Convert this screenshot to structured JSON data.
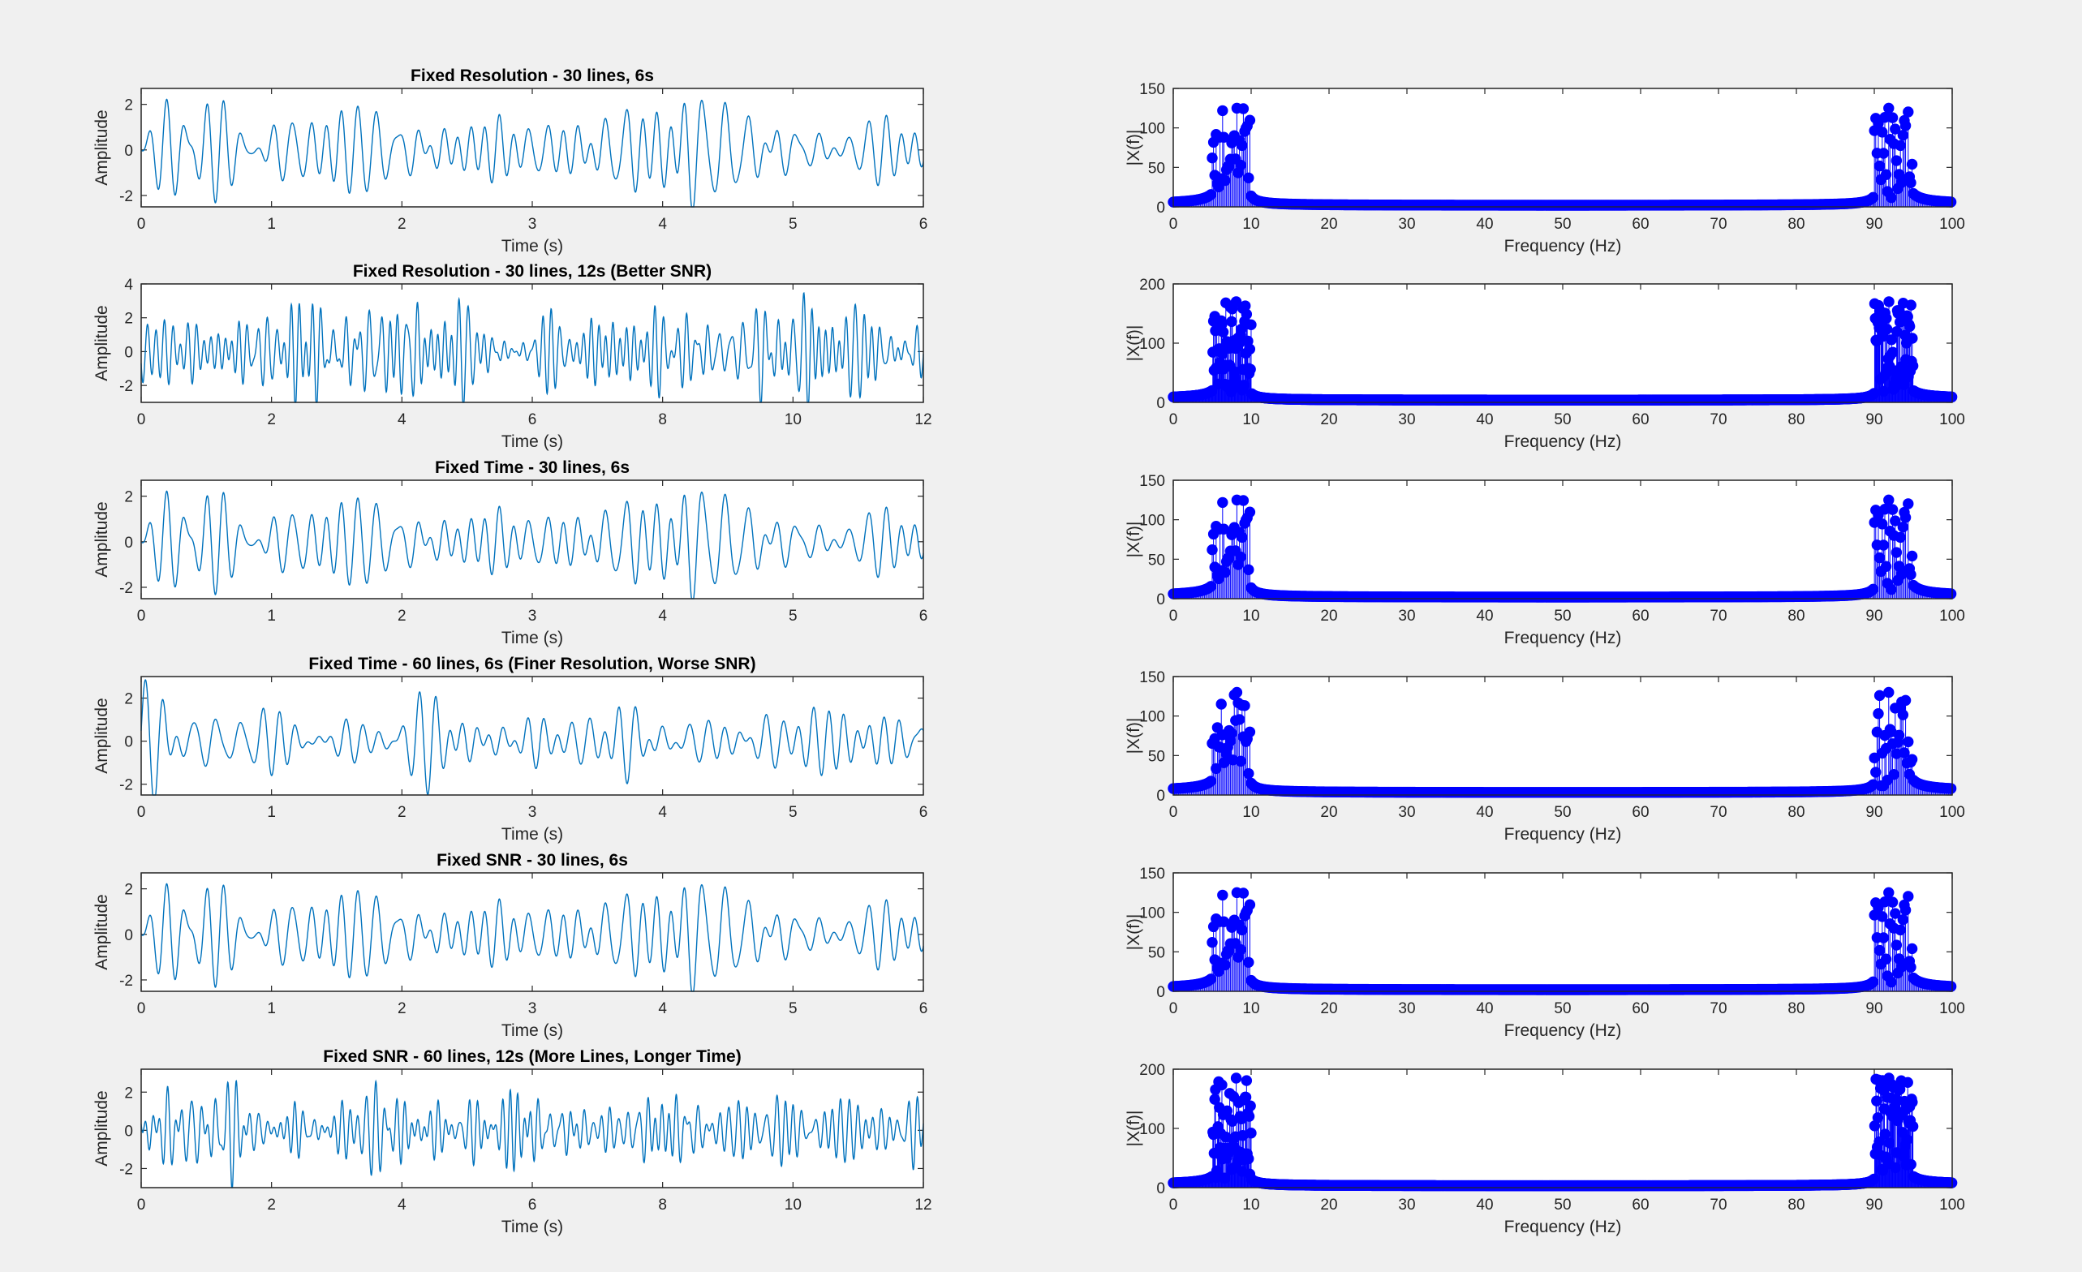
{
  "figure": {
    "background": "#f0f0f0"
  },
  "colors": {
    "time_line": "#0072bd",
    "stem": "#0000ff",
    "axis": "#262626"
  },
  "chart_data": [
    {
      "type": "line",
      "title": "Fixed Resolution - 30 lines, 6s",
      "xlabel": "Time (s)",
      "ylabel": "Amplitude",
      "xlim": [
        0,
        6
      ],
      "ylim": [
        -2.5,
        2.7
      ],
      "xticks": [
        0,
        1,
        2,
        3,
        4,
        5,
        6
      ],
      "yticks": [
        -2,
        0,
        2
      ],
      "signal": {
        "duration_s": 6,
        "num_lines": 30,
        "f_min_hz": 5,
        "f_max_hz": 10,
        "peak": 2.7,
        "seed": 11
      }
    },
    {
      "type": "stem",
      "xlabel": "Frequency (Hz)",
      "ylabel": "|X(f)|",
      "xlim": [
        0,
        100
      ],
      "ylim": [
        0,
        150
      ],
      "xticks": [
        0,
        10,
        20,
        30,
        40,
        50,
        60,
        70,
        80,
        90,
        100
      ],
      "yticks": [
        0,
        50,
        100,
        150
      ],
      "spectrum": {
        "bin_spacing_hz": 0.1667,
        "band_hz": [
          5,
          10
        ],
        "peak": 125,
        "floor": 3,
        "seed": 11
      }
    },
    {
      "type": "line",
      "title": "Fixed Resolution - 30 lines, 12s (Better SNR)",
      "xlabel": "Time (s)",
      "ylabel": "Amplitude",
      "xlim": [
        0,
        12
      ],
      "ylim": [
        -3,
        4
      ],
      "xticks": [
        0,
        2,
        4,
        6,
        8,
        10,
        12
      ],
      "yticks": [
        -2,
        0,
        2,
        4
      ],
      "signal": {
        "duration_s": 12,
        "num_lines": 30,
        "f_min_hz": 5,
        "f_max_hz": 10,
        "peak": 3.5,
        "seed": 23
      }
    },
    {
      "type": "stem",
      "xlabel": "Frequency (Hz)",
      "ylabel": "|X(f)|",
      "xlim": [
        0,
        100
      ],
      "ylim": [
        0,
        200
      ],
      "xticks": [
        0,
        10,
        20,
        30,
        40,
        50,
        60,
        70,
        80,
        90,
        100
      ],
      "yticks": [
        0,
        100,
        200
      ],
      "spectrum": {
        "bin_spacing_hz": 0.0833,
        "band_hz": [
          5,
          10
        ],
        "peak": 170,
        "floor": 6,
        "seed": 23
      }
    },
    {
      "type": "line",
      "title": "Fixed Time - 30 lines, 6s",
      "xlabel": "Time (s)",
      "ylabel": "Amplitude",
      "xlim": [
        0,
        6
      ],
      "ylim": [
        -2.5,
        2.7
      ],
      "xticks": [
        0,
        1,
        2,
        3,
        4,
        5,
        6
      ],
      "yticks": [
        -2,
        0,
        2
      ],
      "signal": {
        "duration_s": 6,
        "num_lines": 30,
        "f_min_hz": 5,
        "f_max_hz": 10,
        "peak": 2.7,
        "seed": 11
      }
    },
    {
      "type": "stem",
      "xlabel": "Frequency (Hz)",
      "ylabel": "|X(f)|",
      "xlim": [
        0,
        100
      ],
      "ylim": [
        0,
        150
      ],
      "xticks": [
        0,
        10,
        20,
        30,
        40,
        50,
        60,
        70,
        80,
        90,
        100
      ],
      "yticks": [
        0,
        50,
        100,
        150
      ],
      "spectrum": {
        "bin_spacing_hz": 0.1667,
        "band_hz": [
          5,
          10
        ],
        "peak": 125,
        "floor": 3,
        "seed": 11
      }
    },
    {
      "type": "line",
      "title": "Fixed Time - 60 lines, 6s (Finer Resolution, Worse SNR)",
      "xlabel": "Time (s)",
      "ylabel": "Amplitude",
      "xlim": [
        0,
        6
      ],
      "ylim": [
        -2.5,
        3
      ],
      "xticks": [
        0,
        1,
        2,
        3,
        4,
        5,
        6
      ],
      "yticks": [
        -2,
        0,
        2
      ],
      "signal": {
        "duration_s": 6,
        "num_lines": 60,
        "f_min_hz": 5,
        "f_max_hz": 10,
        "peak": 2.9,
        "seed": 37
      }
    },
    {
      "type": "stem",
      "xlabel": "Frequency (Hz)",
      "ylabel": "|X(f)|",
      "xlim": [
        0,
        100
      ],
      "ylim": [
        0,
        150
      ],
      "xticks": [
        0,
        10,
        20,
        30,
        40,
        50,
        60,
        70,
        80,
        90,
        100
      ],
      "yticks": [
        0,
        50,
        100,
        150
      ],
      "spectrum": {
        "bin_spacing_hz": 0.1667,
        "band_hz": [
          5,
          10
        ],
        "peak": 130,
        "floor": 5,
        "seed": 37
      }
    },
    {
      "type": "line",
      "title": "Fixed SNR - 30 lines, 6s",
      "xlabel": "Time (s)",
      "ylabel": "Amplitude",
      "xlim": [
        0,
        6
      ],
      "ylim": [
        -2.5,
        2.7
      ],
      "xticks": [
        0,
        1,
        2,
        3,
        4,
        5,
        6
      ],
      "yticks": [
        -2,
        0,
        2
      ],
      "signal": {
        "duration_s": 6,
        "num_lines": 30,
        "f_min_hz": 5,
        "f_max_hz": 10,
        "peak": 2.7,
        "seed": 11
      }
    },
    {
      "type": "stem",
      "xlabel": "Frequency (Hz)",
      "ylabel": "|X(f)|",
      "xlim": [
        0,
        100
      ],
      "ylim": [
        0,
        150
      ],
      "xticks": [
        0,
        10,
        20,
        30,
        40,
        50,
        60,
        70,
        80,
        90,
        100
      ],
      "yticks": [
        0,
        50,
        100,
        150
      ],
      "spectrum": {
        "bin_spacing_hz": 0.1667,
        "band_hz": [
          5,
          10
        ],
        "peak": 125,
        "floor": 3,
        "seed": 11
      }
    },
    {
      "type": "line",
      "title": "Fixed SNR - 60 lines, 12s (More Lines, Longer Time)",
      "xlabel": "Time (s)",
      "ylabel": "Amplitude",
      "xlim": [
        0,
        12
      ],
      "ylim": [
        -3,
        3.2
      ],
      "xticks": [
        0,
        2,
        4,
        6,
        8,
        10,
        12
      ],
      "yticks": [
        -2,
        0,
        2
      ],
      "signal": {
        "duration_s": 12,
        "num_lines": 60,
        "f_min_hz": 5,
        "f_max_hz": 10,
        "peak": 3.1,
        "seed": 53
      }
    },
    {
      "type": "stem",
      "xlabel": "Frequency (Hz)",
      "ylabel": "|X(f)|",
      "xlim": [
        0,
        100
      ],
      "ylim": [
        0,
        200
      ],
      "xticks": [
        0,
        10,
        20,
        30,
        40,
        50,
        60,
        70,
        80,
        90,
        100
      ],
      "yticks": [
        0,
        100,
        200
      ],
      "spectrum": {
        "bin_spacing_hz": 0.0833,
        "band_hz": [
          5,
          10
        ],
        "peak": 185,
        "floor": 5,
        "seed": 53
      }
    }
  ]
}
